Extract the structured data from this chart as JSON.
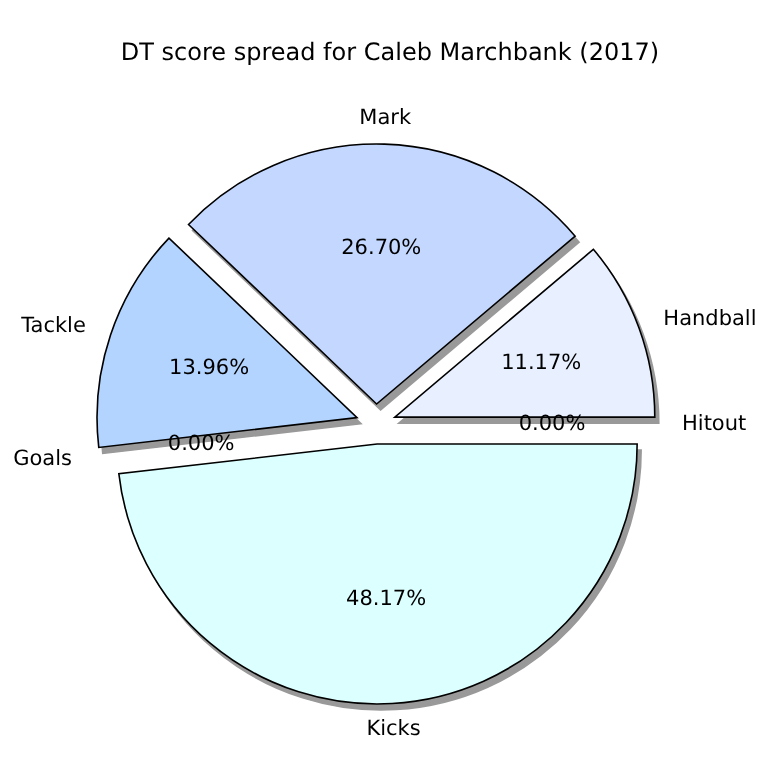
{
  "chart_data": {
    "type": "pie",
    "title": "DT score spread for Caleb Marchbank (2017)",
    "categories": [
      "Handball",
      "Mark",
      "Tackle",
      "Goals",
      "Kicks",
      "Hitout"
    ],
    "values": [
      11.17,
      26.7,
      13.96,
      0.0,
      48.17,
      0.0
    ],
    "value_labels": [
      "11.17%",
      "26.70%",
      "13.96%",
      "0.00%",
      "48.17%",
      "0.00%"
    ],
    "colors": [
      "#e8f0ff",
      "#c4d8ff",
      "#b3d4ff",
      null,
      "#dcffff",
      null
    ]
  }
}
